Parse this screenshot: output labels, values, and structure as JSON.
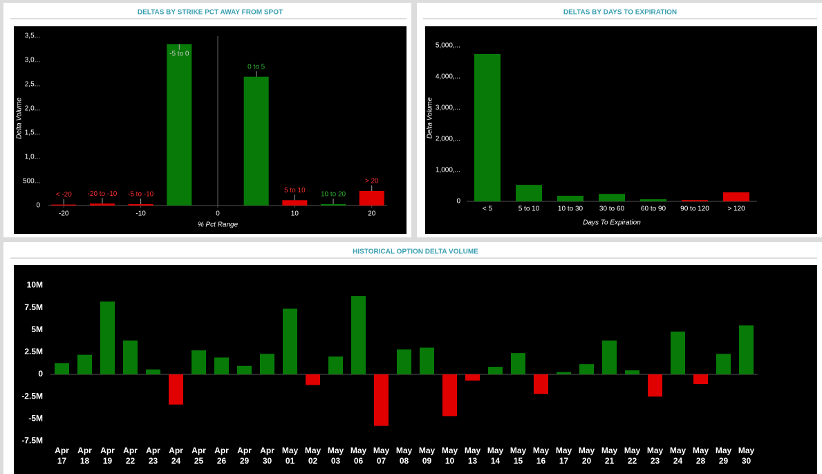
{
  "chart_data": [
    {
      "type": "bar",
      "title": "DELTAS BY STRIKE PCT AWAY FROM SPOT",
      "x_label": "% Pct Range",
      "y_label": "Delta Volume",
      "x": [
        -20,
        -15,
        -10,
        -5,
        5,
        10,
        15,
        20
      ],
      "values": [
        20000,
        40000,
        30000,
        3330000,
        2660000,
        110000,
        30000,
        300000
      ],
      "bar_labels": [
        "< -20",
        "-20 to -10",
        "-5 to -10",
        "-5 to 0",
        "0 to 5",
        "5 to 10",
        "10 to 20",
        "> 20"
      ],
      "colors": [
        "#e00000",
        "#e00000",
        "#e00000",
        "#087a08",
        "#087a08",
        "#e00000",
        "#087a08",
        "#e00000"
      ],
      "xlim": [
        -22,
        22
      ],
      "xticks": [
        -20,
        -10,
        0,
        10,
        20
      ],
      "zero_line": true,
      "ylim": [
        0,
        3600000
      ],
      "yticks": [
        0,
        {
          "value": 500000,
          "label": "500..."
        },
        {
          "value": 1000000,
          "label": "1,0..."
        },
        {
          "value": 1500000,
          "label": "1,5..."
        },
        {
          "value": 2000000,
          "label": "2,0..."
        },
        {
          "value": 2500000,
          "label": "2,5..."
        },
        {
          "value": 3000000,
          "label": "3,0..."
        },
        {
          "value": 3500000,
          "label": "3,5..."
        }
      ]
    },
    {
      "type": "bar",
      "title": "DELTAS BY DAYS TO EXPIRATION",
      "x_label": "Days To Expiration",
      "y_label": "Delta Volume",
      "categories": [
        "< 5",
        "5 to 10",
        "10 to 30",
        "30 to 60",
        "60 to 90",
        "90 to 120",
        "> 120"
      ],
      "values": [
        4730000,
        530000,
        180000,
        240000,
        70000,
        40000,
        290000
      ],
      "colors": [
        "#087a08",
        "#087a08",
        "#087a08",
        "#087a08",
        "#087a08",
        "#e00000",
        "#e00000"
      ],
      "ylim": [
        0,
        5350000
      ],
      "yticks": [
        0,
        {
          "value": 1000000,
          "label": "1,000,..."
        },
        {
          "value": 2000000,
          "label": "2,000,..."
        },
        {
          "value": 3000000,
          "label": "3,000,..."
        },
        {
          "value": 4000000,
          "label": "4,000,..."
        },
        {
          "value": 5000000,
          "label": "5,000,..."
        }
      ]
    },
    {
      "type": "bar",
      "title": "HISTORICAL OPTION DELTA VOLUME",
      "categories": [
        "Apr 17",
        "Apr 18",
        "Apr 19",
        "Apr 22",
        "Apr 23",
        "Apr 24",
        "Apr 25",
        "Apr 26",
        "Apr 29",
        "Apr 30",
        "May 01",
        "May 02",
        "May 03",
        "May 06",
        "May 07",
        "May 08",
        "May 09",
        "May 10",
        "May 13",
        "May 14",
        "May 15",
        "May 16",
        "May 17",
        "May 20",
        "May 21",
        "May 22",
        "May 23",
        "May 24",
        "May 28",
        "May 29",
        "May 30"
      ],
      "values": [
        1250000,
        2200000,
        8200000,
        3800000,
        550000,
        -3400000,
        2700000,
        1900000,
        950000,
        2300000,
        7400000,
        -1200000,
        2000000,
        8800000,
        -5800000,
        2800000,
        3000000,
        -4700000,
        -700000,
        850000,
        2400000,
        -2200000,
        250000,
        1150000,
        3800000,
        450000,
        -2500000,
        4800000,
        -1100000,
        2300000,
        5500000
      ],
      "positive_color": "#087a08",
      "negative_color": "#e00000",
      "ylim": [
        -8100000,
        12300000
      ],
      "yticks": [
        {
          "value": -7500000,
          "label": "-7.5M"
        },
        {
          "value": -5000000,
          "label": "-5M"
        },
        {
          "value": -2500000,
          "label": "-2.5M"
        },
        0,
        {
          "value": 2500000,
          "label": "2.5M"
        },
        {
          "value": 5000000,
          "label": "5M"
        },
        {
          "value": 7500000,
          "label": "7.5M"
        },
        {
          "value": 10000000,
          "label": "10M"
        }
      ]
    }
  ]
}
